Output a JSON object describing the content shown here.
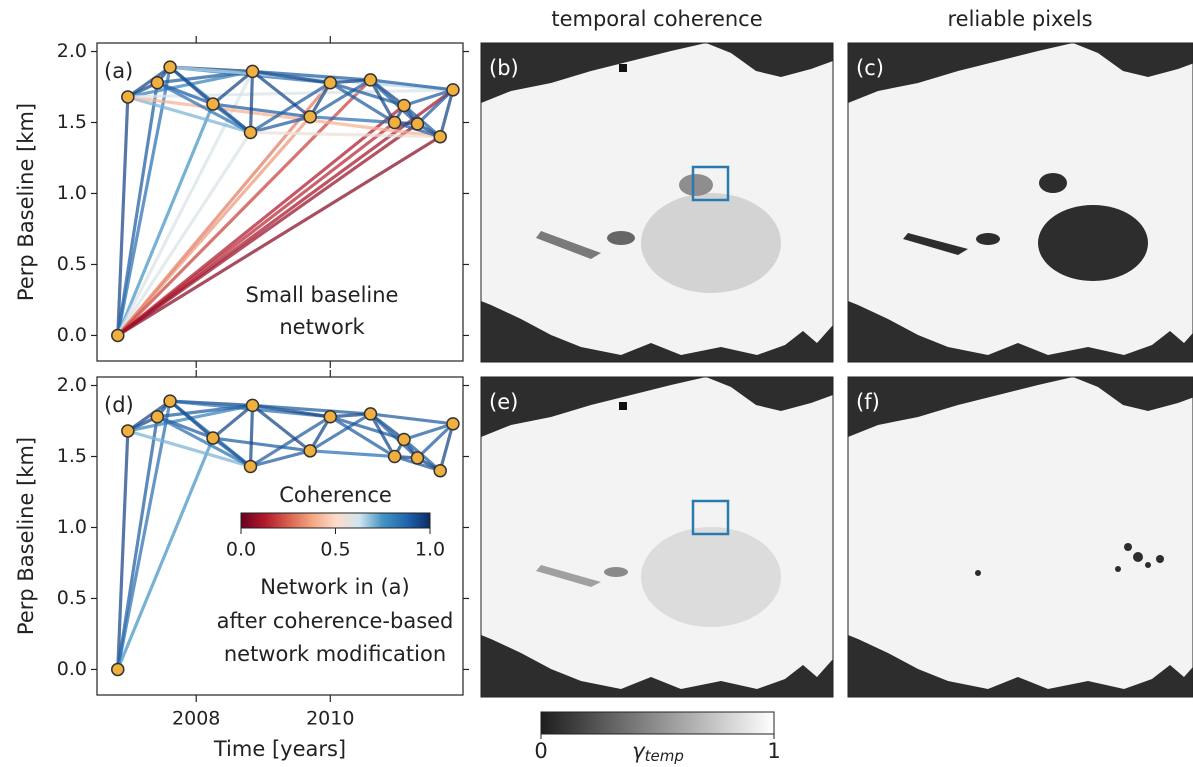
{
  "chart_data": [
    {
      "type": "network",
      "panel_label": "(a)",
      "ylabel": "Perp Baseline [km]",
      "annotation": [
        "Small baseline",
        "network"
      ],
      "xlim": [
        2006.52,
        2011.98
      ],
      "xticks": [
        2008,
        2010
      ],
      "show_xtick_labels": false,
      "ylim": [
        -0.18,
        2.06
      ],
      "yticks": [
        {
          "value": 0,
          "label": "0.0"
        },
        {
          "value": 0.5,
          "label": "0.5"
        },
        {
          "value": 1,
          "label": "1.0"
        },
        {
          "value": 1.5,
          "label": "1.5"
        },
        {
          "value": 2,
          "label": "2.0"
        }
      ],
      "node_color": "#f0b040",
      "nodes": {
        "x": [
          2006.83,
          2006.98,
          2007.42,
          2007.61,
          2008.25,
          2008.81,
          2008.84,
          2009.7,
          2010.0,
          2010.6,
          2010.96,
          2011.1,
          2011.3,
          2011.64,
          2011.83
        ],
        "y": [
          0.0,
          1.68,
          1.78,
          1.89,
          1.63,
          1.43,
          1.86,
          1.54,
          1.78,
          1.8,
          1.5,
          1.62,
          1.49,
          1.4,
          1.73
        ]
      },
      "edges": {
        "from": [
          0,
          0,
          0,
          0,
          0,
          0,
          0,
          0,
          0,
          0,
          0,
          0,
          0,
          0,
          1,
          1,
          1,
          1,
          1,
          1,
          2,
          2,
          2,
          2,
          3,
          3,
          3,
          3,
          3,
          4,
          4,
          4,
          5,
          5,
          5,
          5,
          6,
          6,
          6,
          7,
          7,
          7,
          8,
          8,
          8,
          9,
          9,
          9,
          9,
          10,
          10,
          10,
          11,
          11,
          11,
          12,
          12,
          13
        ],
        "to": [
          1,
          2,
          3,
          4,
          5,
          6,
          7,
          8,
          9,
          10,
          11,
          12,
          13,
          14,
          2,
          3,
          5,
          6,
          13,
          14,
          3,
          4,
          6,
          5,
          4,
          5,
          6,
          8,
          14,
          5,
          6,
          7,
          6,
          7,
          8,
          13,
          7,
          8,
          9,
          8,
          9,
          10,
          9,
          10,
          11,
          10,
          11,
          12,
          14,
          11,
          12,
          13,
          12,
          13,
          14,
          13,
          14,
          14
        ],
        "coherence": [
          0.95,
          0.9,
          0.85,
          0.75,
          0.6,
          0.6,
          0.35,
          0.3,
          0.2,
          0.15,
          0.12,
          0.08,
          0.05,
          0.1,
          0.95,
          0.95,
          0.7,
          0.8,
          0.4,
          0.6,
          0.95,
          0.9,
          0.9,
          0.85,
          0.95,
          0.9,
          0.95,
          0.85,
          0.65,
          0.9,
          0.95,
          0.9,
          0.95,
          0.9,
          0.9,
          0.55,
          0.95,
          0.95,
          0.9,
          0.95,
          0.9,
          0.85,
          0.95,
          0.9,
          0.9,
          0.95,
          0.95,
          0.9,
          0.9,
          0.95,
          0.95,
          0.9,
          0.95,
          0.9,
          0.9,
          0.95,
          0.9,
          0.95
        ]
      },
      "colormap": [
        "#67001f",
        "#b2182b",
        "#d6604d",
        "#f4a582",
        "#fddbc7",
        "#d1e5f0",
        "#4393c3",
        "#2166ac",
        "#0b2d6b"
      ]
    },
    {
      "type": "network",
      "panel_label": "(d)",
      "ylabel": "Perp Baseline [km]",
      "xlabel": "Time [years]",
      "annotation": [
        "Network in (a)",
        "after coherence-based",
        "network modification"
      ],
      "xlim": [
        2006.52,
        2011.98
      ],
      "xticks": [
        2008,
        2010
      ],
      "show_xtick_labels": true,
      "ylim": [
        -0.18,
        2.06
      ],
      "yticks": [
        {
          "value": 0,
          "label": "0.0"
        },
        {
          "value": 0.5,
          "label": "0.5"
        },
        {
          "value": 1,
          "label": "1.0"
        },
        {
          "value": 1.5,
          "label": "1.5"
        },
        {
          "value": 2,
          "label": "2.0"
        }
      ],
      "node_color": "#f0b040",
      "nodes": {
        "x": [
          2006.83,
          2006.98,
          2007.42,
          2007.61,
          2008.25,
          2008.81,
          2008.84,
          2009.7,
          2010.0,
          2010.6,
          2010.96,
          2011.1,
          2011.3,
          2011.64,
          2011.83
        ],
        "y": [
          0.0,
          1.68,
          1.78,
          1.89,
          1.63,
          1.43,
          1.86,
          1.54,
          1.78,
          1.8,
          1.5,
          1.62,
          1.49,
          1.4,
          1.73
        ]
      },
      "edges": {
        "from": [
          0,
          0,
          0,
          0,
          1,
          1,
          1,
          1,
          2,
          2,
          2,
          2,
          3,
          3,
          3,
          3,
          4,
          4,
          4,
          5,
          5,
          5,
          6,
          6,
          6,
          7,
          7,
          7,
          8,
          8,
          8,
          9,
          9,
          9,
          9,
          10,
          10,
          10,
          11,
          11,
          11,
          12,
          12,
          13
        ],
        "to": [
          1,
          2,
          3,
          4,
          2,
          3,
          5,
          6,
          3,
          4,
          6,
          5,
          4,
          5,
          6,
          8,
          5,
          6,
          7,
          6,
          7,
          8,
          7,
          8,
          9,
          8,
          9,
          10,
          9,
          10,
          11,
          10,
          11,
          12,
          14,
          11,
          12,
          13,
          12,
          13,
          14,
          13,
          14,
          14
        ],
        "coherence": [
          0.95,
          0.9,
          0.85,
          0.75,
          0.95,
          0.95,
          0.7,
          0.8,
          0.95,
          0.9,
          0.9,
          0.85,
          0.95,
          0.9,
          0.95,
          0.85,
          0.9,
          0.95,
          0.9,
          0.95,
          0.9,
          0.9,
          0.95,
          0.95,
          0.9,
          0.95,
          0.9,
          0.85,
          0.95,
          0.9,
          0.9,
          0.95,
          0.95,
          0.9,
          0.9,
          0.95,
          0.95,
          0.9,
          0.95,
          0.9,
          0.9,
          0.95,
          0.9,
          0.95
        ]
      },
      "colormap": [
        "#67001f",
        "#b2182b",
        "#d6604d",
        "#f4a582",
        "#fddbc7",
        "#d1e5f0",
        "#4393c3",
        "#2166ac",
        "#0b2d6b"
      ],
      "colorbar": {
        "title": "Coherence",
        "lim": [
          0,
          1
        ],
        "ticks": [
          {
            "value": 0,
            "label": "0.0"
          },
          {
            "value": 0.5,
            "label": "0.5"
          },
          {
            "value": 1,
            "label": "1.0"
          }
        ]
      }
    }
  ],
  "images": {
    "titles": [
      "temporal coherence",
      "reliable pixels"
    ],
    "panel_labels": [
      "(b)",
      "(c)",
      "(e)",
      "(f)"
    ],
    "colorbar": {
      "symbol": "γ",
      "subscript": "temp",
      "lim": [
        0,
        1
      ],
      "ticks": [
        0,
        1
      ],
      "colormap": [
        "#1e1e1e",
        "#ffffff"
      ]
    }
  }
}
